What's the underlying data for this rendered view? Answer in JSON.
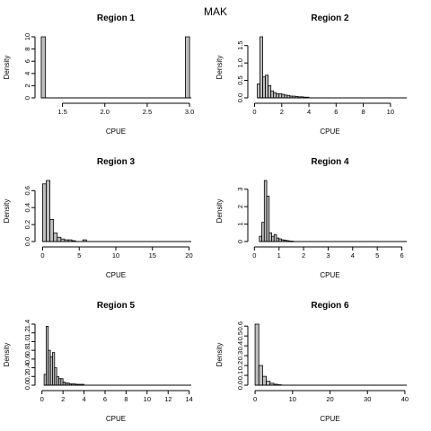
{
  "figure": {
    "title": "MAK"
  },
  "colors": {
    "bar_fill": "#bebebe",
    "bar_stroke": "#000000"
  },
  "chart_data": [
    {
      "type": "bar",
      "title": "Region 1",
      "xlabel": "CPUE",
      "ylabel": "Density",
      "xlim": [
        1.24,
        3.02
      ],
      "ylim": [
        0,
        10
      ],
      "xticks": [
        1.5,
        2.0,
        2.5,
        3.0
      ],
      "xtick_labels": [
        "1.5",
        "2.0",
        "2.5",
        "3.0"
      ],
      "yticks": [
        0,
        2,
        4,
        6,
        8,
        10
      ],
      "bin_width": 0.05,
      "bins": [
        {
          "x0": 1.25,
          "y": 10
        },
        {
          "x0": 1.3,
          "y": 0
        },
        {
          "x0": 1.35,
          "y": 0
        },
        {
          "x0": 1.4,
          "y": 0
        },
        {
          "x0": 1.45,
          "y": 0
        },
        {
          "x0": 1.5,
          "y": 0
        },
        {
          "x0": 1.55,
          "y": 0
        },
        {
          "x0": 1.6,
          "y": 0
        },
        {
          "x0": 1.65,
          "y": 0
        },
        {
          "x0": 1.7,
          "y": 0
        },
        {
          "x0": 1.75,
          "y": 0
        },
        {
          "x0": 1.8,
          "y": 0
        },
        {
          "x0": 1.85,
          "y": 0
        },
        {
          "x0": 1.9,
          "y": 0
        },
        {
          "x0": 1.95,
          "y": 0
        },
        {
          "x0": 2.0,
          "y": 0
        },
        {
          "x0": 2.05,
          "y": 0
        },
        {
          "x0": 2.1,
          "y": 0
        },
        {
          "x0": 2.15,
          "y": 0
        },
        {
          "x0": 2.2,
          "y": 0
        },
        {
          "x0": 2.25,
          "y": 0
        },
        {
          "x0": 2.3,
          "y": 0
        },
        {
          "x0": 2.35,
          "y": 0
        },
        {
          "x0": 2.4,
          "y": 0
        },
        {
          "x0": 2.45,
          "y": 0
        },
        {
          "x0": 2.5,
          "y": 0
        },
        {
          "x0": 2.55,
          "y": 0
        },
        {
          "x0": 2.6,
          "y": 0
        },
        {
          "x0": 2.65,
          "y": 0
        },
        {
          "x0": 2.7,
          "y": 0
        },
        {
          "x0": 2.75,
          "y": 0
        },
        {
          "x0": 2.8,
          "y": 0
        },
        {
          "x0": 2.85,
          "y": 0
        },
        {
          "x0": 2.9,
          "y": 0
        },
        {
          "x0": 2.95,
          "y": 10
        }
      ]
    },
    {
      "type": "bar",
      "title": "Region 2",
      "xlabel": "CPUE",
      "ylabel": "Density",
      "xlim": [
        -0.1,
        11.2
      ],
      "ylim": [
        0,
        1.75
      ],
      "xticks": [
        0,
        2,
        4,
        6,
        8,
        10
      ],
      "xtick_labels": [
        "0",
        "2",
        "4",
        "6",
        "8",
        "10"
      ],
      "yticks": [
        0,
        0.5,
        1.0,
        1.5
      ],
      "ytick_labels": [
        "0.0",
        "0.5",
        "1.0",
        "1.5"
      ],
      "bin_width": 0.2,
      "bins": [
        {
          "x0": 0.2,
          "y": 0.4
        },
        {
          "x0": 0.4,
          "y": 1.75
        },
        {
          "x0": 0.6,
          "y": 0.6
        },
        {
          "x0": 0.8,
          "y": 0.65
        },
        {
          "x0": 1.0,
          "y": 0.35
        },
        {
          "x0": 1.2,
          "y": 0.2
        },
        {
          "x0": 1.4,
          "y": 0.15
        },
        {
          "x0": 1.6,
          "y": 0.12
        },
        {
          "x0": 1.8,
          "y": 0.12
        },
        {
          "x0": 2.0,
          "y": 0.1
        },
        {
          "x0": 2.2,
          "y": 0.08
        },
        {
          "x0": 2.4,
          "y": 0.07
        },
        {
          "x0": 2.6,
          "y": 0.05
        },
        {
          "x0": 2.8,
          "y": 0.05
        },
        {
          "x0": 3.0,
          "y": 0.04
        },
        {
          "x0": 3.2,
          "y": 0.03
        },
        {
          "x0": 3.4,
          "y": 0.03
        },
        {
          "x0": 3.6,
          "y": 0.02
        },
        {
          "x0": 3.8,
          "y": 0.02
        }
      ]
    },
    {
      "type": "bar",
      "title": "Region 3",
      "xlabel": "CPUE",
      "ylabel": "Density",
      "xlim": [
        -0.3,
        20.3
      ],
      "ylim": [
        0,
        0.72
      ],
      "xticks": [
        0,
        5,
        10,
        15,
        20
      ],
      "xtick_labels": [
        "0",
        "5",
        "10",
        "15",
        "20"
      ],
      "yticks": [
        0,
        0.2,
        0.4,
        0.6
      ],
      "ytick_labels": [
        "0.0",
        "0.2",
        "0.4",
        "0.6"
      ],
      "bin_width": 0.5,
      "bins": [
        {
          "x0": 0.0,
          "y": 0.68
        },
        {
          "x0": 0.5,
          "y": 0.72
        },
        {
          "x0": 1.0,
          "y": 0.26
        },
        {
          "x0": 1.5,
          "y": 0.1
        },
        {
          "x0": 2.0,
          "y": 0.05
        },
        {
          "x0": 2.5,
          "y": 0.03
        },
        {
          "x0": 3.0,
          "y": 0.02
        },
        {
          "x0": 3.5,
          "y": 0.02
        },
        {
          "x0": 4.0,
          "y": 0.01
        },
        {
          "x0": 5.5,
          "y": 0.02
        }
      ]
    },
    {
      "type": "bar",
      "title": "Region 4",
      "xlabel": "CPUE",
      "ylabel": "Density",
      "xlim": [
        -0.05,
        6.2
      ],
      "ylim": [
        0,
        3.5
      ],
      "xticks": [
        0,
        1,
        2,
        3,
        4,
        5,
        6
      ],
      "xtick_labels": [
        "0",
        "1",
        "2",
        "3",
        "4",
        "5",
        "6"
      ],
      "yticks": [
        0,
        1,
        2,
        3
      ],
      "bin_width": 0.1,
      "bins": [
        {
          "x0": 0.2,
          "y": 0.3
        },
        {
          "x0": 0.3,
          "y": 1.1
        },
        {
          "x0": 0.4,
          "y": 3.5
        },
        {
          "x0": 0.5,
          "y": 2.6
        },
        {
          "x0": 0.6,
          "y": 0.5
        },
        {
          "x0": 0.7,
          "y": 0.3
        },
        {
          "x0": 0.8,
          "y": 0.4
        },
        {
          "x0": 0.9,
          "y": 0.2
        },
        {
          "x0": 1.0,
          "y": 0.15
        },
        {
          "x0": 1.1,
          "y": 0.1
        },
        {
          "x0": 1.2,
          "y": 0.08
        },
        {
          "x0": 1.3,
          "y": 0.05
        },
        {
          "x0": 1.4,
          "y": 0.03
        },
        {
          "x0": 1.5,
          "y": 0.02
        }
      ]
    },
    {
      "type": "bar",
      "title": "Region 5",
      "xlabel": "CPUE",
      "ylabel": "Density",
      "xlim": [
        -0.15,
        14.2
      ],
      "ylim": [
        0,
        1.4
      ],
      "xticks": [
        0,
        2,
        4,
        6,
        8,
        10,
        12,
        14
      ],
      "xtick_labels": [
        "0",
        "2",
        "4",
        "6",
        "8",
        "10",
        "12",
        "14"
      ],
      "yticks": [
        0,
        0.2,
        0.4,
        0.6,
        0.8,
        1.0,
        1.2,
        1.4
      ],
      "ytick_labels": [
        "0.0",
        "0.2",
        "0.4",
        "0.6",
        "0.8",
        "1.0",
        "1.2",
        "1.4"
      ],
      "bin_width": 0.2,
      "bins": [
        {
          "x0": 0.2,
          "y": 0.25
        },
        {
          "x0": 0.4,
          "y": 1.35
        },
        {
          "x0": 0.6,
          "y": 0.8
        },
        {
          "x0": 0.8,
          "y": 0.65
        },
        {
          "x0": 1.0,
          "y": 0.75
        },
        {
          "x0": 1.2,
          "y": 0.4
        },
        {
          "x0": 1.4,
          "y": 0.2
        },
        {
          "x0": 1.6,
          "y": 0.15
        },
        {
          "x0": 1.8,
          "y": 0.15
        },
        {
          "x0": 2.0,
          "y": 0.07
        },
        {
          "x0": 2.2,
          "y": 0.05
        },
        {
          "x0": 2.4,
          "y": 0.05
        },
        {
          "x0": 2.6,
          "y": 0.03
        },
        {
          "x0": 2.8,
          "y": 0.03
        },
        {
          "x0": 3.0,
          "y": 0.03
        },
        {
          "x0": 3.2,
          "y": 0.02
        },
        {
          "x0": 3.4,
          "y": 0.02
        },
        {
          "x0": 3.6,
          "y": 0.02
        },
        {
          "x0": 3.8,
          "y": 0.02
        }
      ]
    },
    {
      "type": "bar",
      "title": "Region 6",
      "xlabel": "CPUE",
      "ylabel": "Density",
      "xlim": [
        -0.5,
        40.5
      ],
      "ylim": [
        0,
        0.62
      ],
      "xticks": [
        0,
        10,
        20,
        30,
        40
      ],
      "xtick_labels": [
        "0",
        "10",
        "20",
        "30",
        "40"
      ],
      "yticks": [
        0,
        0.1,
        0.2,
        0.3,
        0.4,
        0.5,
        0.6
      ],
      "ytick_labels": [
        "0.0",
        "0.1",
        "0.2",
        "0.3",
        "0.4",
        "0.5",
        "0.6"
      ],
      "bin_width": 1,
      "bins": [
        {
          "x0": 0,
          "y": 0.62
        },
        {
          "x0": 1,
          "y": 0.2
        },
        {
          "x0": 2,
          "y": 0.09
        },
        {
          "x0": 3,
          "y": 0.04
        },
        {
          "x0": 4,
          "y": 0.02
        },
        {
          "x0": 5,
          "y": 0.01
        },
        {
          "x0": 6,
          "y": 0.005
        }
      ]
    }
  ]
}
